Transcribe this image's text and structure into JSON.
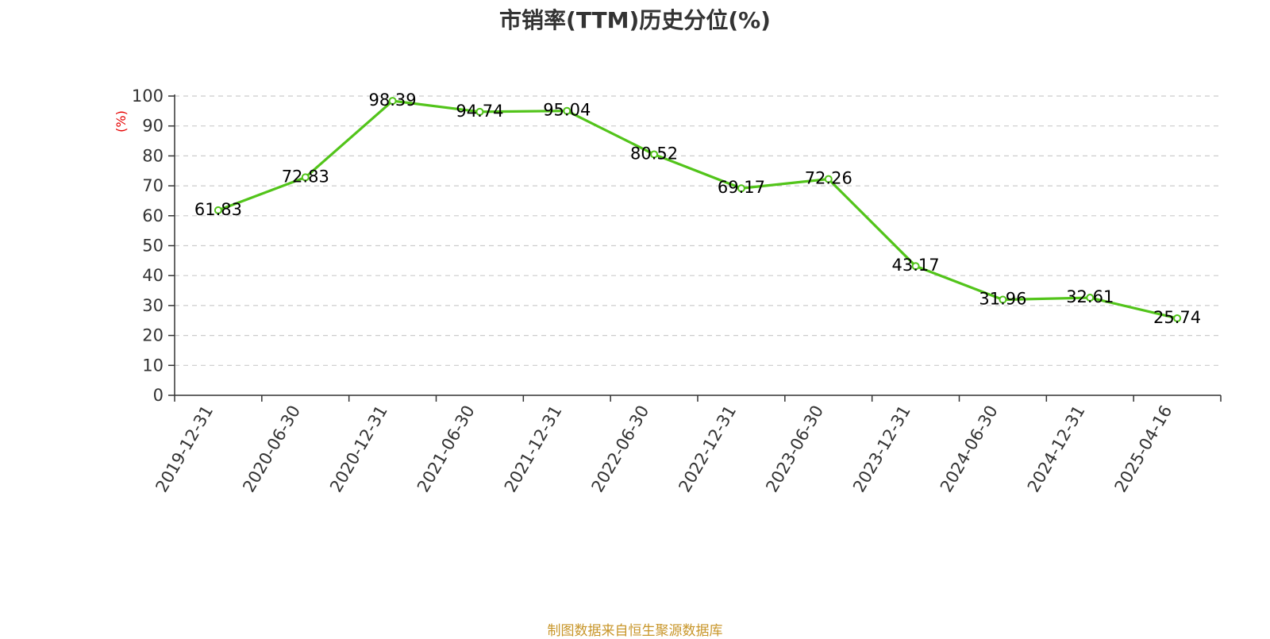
{
  "chart_data": {
    "type": "line",
    "title": "市销率(TTM)历史分位(%)",
    "ylabel": "(%)",
    "xlabel": "",
    "ylim": [
      0,
      100
    ],
    "yticks": [
      0,
      10,
      20,
      30,
      40,
      50,
      60,
      70,
      80,
      90,
      100
    ],
    "grid": true,
    "categories": [
      "2019-12-31",
      "2020-06-30",
      "2020-12-31",
      "2021-06-30",
      "2021-12-31",
      "2022-06-30",
      "2022-12-31",
      "2023-06-30",
      "2023-12-31",
      "2024-06-30",
      "2024-12-31",
      "2025-04-16"
    ],
    "series": [
      {
        "values": [
          61.83,
          72.83,
          98.39,
          94.74,
          95.04,
          80.52,
          69.17,
          72.26,
          43.17,
          31.96,
          32.61,
          25.74
        ]
      }
    ],
    "data_labels": [
      "61.83",
      "72.83",
      "98.39",
      "94.74",
      "95.04",
      "80.52",
      "69.17",
      "72.26",
      "43.17",
      "31.96",
      "32.61",
      "25.74"
    ]
  },
  "colors": {
    "line": "#52c41a",
    "ylabel": "#e60000",
    "grid": "#cccccc",
    "axis": "#333333",
    "source": "#c8962a"
  },
  "footer": {
    "source": "制图数据来自恒生聚源数据库"
  }
}
